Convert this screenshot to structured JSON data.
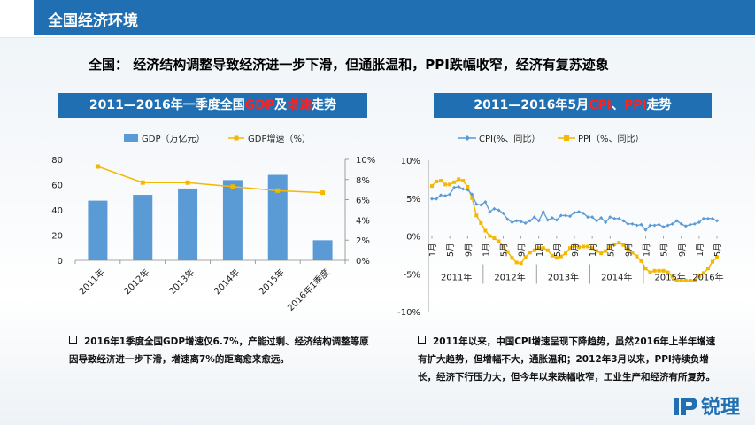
{
  "header": {
    "title": "全国经济环境"
  },
  "headline": "全国： 经济结构调整导致经济进一步下滑，但通胀温和，PPI跌幅收窄，经济有复苏迹象",
  "panel1": {
    "title_part1": "2011—2016年一季度全国",
    "title_red1": "GDP",
    "title_part2": "及",
    "title_red2": "增速",
    "title_part3": "走势",
    "note": "2016年1季度全国GDP增速仅6.7%，产能过剩、经济结构调整等原因导致经济进一步下滑，增速离7%的距离愈来愈远。"
  },
  "panel2": {
    "title_part1": "2011—2016年5月",
    "title_red1": "CPI",
    "title_part2": "、",
    "title_red2": "PPI",
    "title_part3": "走势",
    "note": "2011年以来，中国CPI增速呈现下降趋势，虽然2016年上半年增速有扩大趋势，但增幅不大，通胀温和；2012年3月以来，PPI持续负增长，经济下行压力大，但今年以来跌幅收窄，工业生产和经济有所复苏。"
  },
  "logo": {
    "text": "锐理"
  },
  "colors": {
    "header": "#1f6fb2",
    "bar": "#5b9bd5",
    "gdp_line": "#f5b800",
    "cpi": "#5b9bd5",
    "ppi": "#f5b800",
    "red": "#ff2020"
  },
  "chart_data": [
    {
      "type": "bar",
      "categories": [
        "2011年",
        "2012年",
        "2013年",
        "2014年",
        "2015年",
        "2016年1季度"
      ],
      "series": [
        {
          "name": "GDP（万亿元）",
          "type": "bar",
          "axis": "left",
          "values": [
            47.3,
            51.9,
            56.9,
            63.6,
            67.7,
            15.9
          ]
        },
        {
          "name": "GDP增速（%）",
          "type": "line",
          "axis": "right",
          "values": [
            9.3,
            7.7,
            7.7,
            7.3,
            6.9,
            6.7
          ]
        }
      ],
      "ylim": [
        0,
        80
      ],
      "yticks": [
        "0",
        "20",
        "40",
        "60",
        "80"
      ],
      "y2lim": [
        0,
        10
      ],
      "y2ticks": [
        "0%",
        "2%",
        "4%",
        "6%",
        "8%",
        "10%"
      ],
      "legend": "top"
    },
    {
      "type": "line",
      "x_start": "2011-01",
      "x_end": "2016-05",
      "month_ticks": [
        "1月",
        "5月",
        "9月",
        "1月",
        "5月",
        "9月",
        "1月",
        "5月",
        "9月",
        "1月",
        "5月",
        "9月",
        "1月",
        "5月",
        "9月",
        "1月",
        "5月"
      ],
      "year_labels": [
        "2011年",
        "2012年",
        "2013年",
        "2014年",
        "2015年",
        "2016年"
      ],
      "ylim": [
        -10,
        10
      ],
      "yticks": [
        "-10%",
        "-5%",
        "0%",
        "5%",
        "10%"
      ],
      "legend": "top",
      "series": [
        {
          "name": "CPI(%、同比）",
          "values": [
            4.9,
            4.9,
            5.4,
            5.3,
            5.5,
            6.4,
            6.5,
            6.2,
            6.1,
            5.5,
            4.2,
            4.1,
            4.5,
            3.2,
            3.6,
            3.4,
            3.0,
            2.2,
            1.8,
            2.0,
            1.9,
            1.7,
            2.0,
            2.5,
            2.0,
            3.2,
            2.1,
            2.4,
            2.1,
            2.7,
            2.7,
            2.6,
            3.1,
            3.2,
            3.0,
            2.5,
            2.5,
            2.0,
            2.4,
            1.8,
            2.5,
            2.3,
            2.3,
            2.0,
            1.6,
            1.6,
            1.4,
            1.5,
            0.8,
            1.4,
            1.4,
            1.5,
            1.2,
            1.4,
            1.6,
            2.0,
            1.6,
            1.3,
            1.5,
            1.6,
            1.8,
            2.3,
            2.3,
            2.3,
            2.0
          ]
        },
        {
          "name": "PPI（%、同比）",
          "values": [
            6.6,
            7.2,
            7.3,
            6.8,
            6.8,
            7.1,
            7.5,
            7.3,
            6.5,
            5.0,
            2.7,
            1.7,
            0.7,
            0.0,
            -0.3,
            -0.7,
            -1.4,
            -2.1,
            -2.9,
            -3.5,
            -3.6,
            -2.8,
            -2.2,
            -1.9,
            -1.6,
            -1.6,
            -1.9,
            -2.6,
            -2.9,
            -2.7,
            -2.3,
            -1.6,
            -1.3,
            -1.5,
            -1.4,
            -1.4,
            -1.6,
            -2.0,
            -2.3,
            -2.0,
            -1.4,
            -1.1,
            -0.9,
            -1.2,
            -1.8,
            -2.2,
            -2.7,
            -3.3,
            -4.3,
            -4.8,
            -4.6,
            -4.6,
            -4.6,
            -4.8,
            -5.4,
            -5.9,
            -5.9,
            -5.9,
            -5.9,
            -5.9,
            -5.3,
            -4.9,
            -4.3,
            -3.4,
            -2.8
          ]
        }
      ]
    }
  ]
}
